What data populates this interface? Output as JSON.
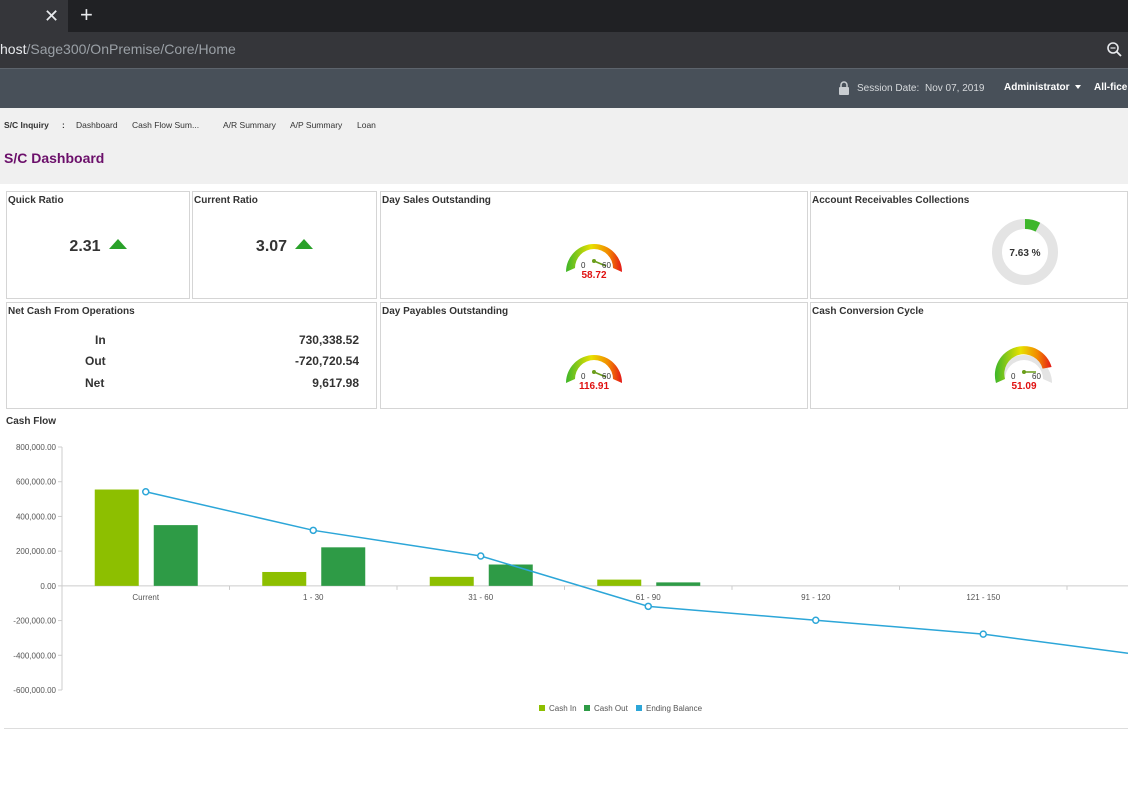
{
  "browser": {
    "url_host": "host",
    "url_path": "/Sage300/OnPremise/Core/Home",
    "close_icon": "close-icon",
    "new_tab_icon": "plus-icon",
    "zoom_icon": "magnifier-icon"
  },
  "header": {
    "session_label": "Session Date:",
    "session_date": "Nov 07, 2019",
    "user": "Administrator",
    "company": "All-fice"
  },
  "subnav": {
    "module": "S/C Inquiry",
    "separator": ":",
    "items": [
      "Dashboard",
      "Cash Flow Sum...",
      "A/R Summary",
      "A/P Summary",
      "Loan"
    ]
  },
  "page": {
    "title": "S/C Dashboard"
  },
  "widgets": {
    "quick_ratio": {
      "title": "Quick Ratio",
      "value": "2.31",
      "trend": "up"
    },
    "current_ratio": {
      "title": "Current Ratio",
      "value": "3.07",
      "trend": "up"
    },
    "dso": {
      "title": "Day Sales Outstanding",
      "min": "0",
      "max": "60",
      "value": "58.72"
    },
    "arc": {
      "title": "Account Receivables Collections",
      "value": "7.63 %",
      "fraction": 0.0763
    },
    "ncfo": {
      "title": "Net Cash From Operations",
      "rows": [
        {
          "label": "In",
          "value": "730,338.52"
        },
        {
          "label": "Out",
          "value": "-720,720.54"
        },
        {
          "label": "Net",
          "value": "9,617.98"
        }
      ]
    },
    "dpo": {
      "title": "Day Payables Outstanding",
      "min": "0",
      "max": "60",
      "value": "116.91"
    },
    "ccc": {
      "title": "Cash Conversion Cycle",
      "min": "0",
      "max": "60",
      "value": "51.09"
    }
  },
  "cash_flow": {
    "title": "Cash Flow"
  },
  "colors": {
    "cash_in": "#8dbf00",
    "cash_out": "#2e9b46",
    "ending_balance": "#2ca6d8",
    "title_purple": "#6b0f6a",
    "gauge_value": "#e01010"
  },
  "chart_data": {
    "type": "bar",
    "categories": [
      "Current",
      "1 - 30",
      "31 - 60",
      "61 - 90",
      "91 - 120",
      "121 - 150"
    ],
    "series": [
      {
        "name": "Cash In",
        "type": "bar",
        "values": [
          555000,
          80000,
          52000,
          36000,
          0,
          0
        ]
      },
      {
        "name": "Cash Out",
        "type": "bar",
        "values": [
          350000,
          222000,
          123000,
          20000,
          0,
          0
        ]
      },
      {
        "name": "Ending Balance",
        "type": "line",
        "values": [
          542000,
          320000,
          172000,
          -118000,
          -198000,
          -278000
        ]
      }
    ],
    "yticks": [
      "800,000.00",
      "600,000.00",
      "400,000.00",
      "200,000.00",
      "0.00",
      "-200,000.00",
      "-400,000.00",
      "-600,000.00"
    ],
    "ylim": [
      -600000,
      800000
    ],
    "legend": "bottom",
    "grid": false
  }
}
